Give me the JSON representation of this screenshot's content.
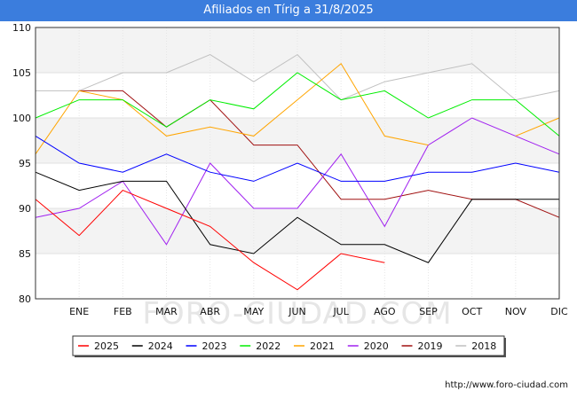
{
  "chart_data": {
    "type": "line",
    "title": "Afiliados en Tírig a 31/8/2025",
    "categories": [
      "",
      "ENE",
      "FEB",
      "MAR",
      "ABR",
      "MAY",
      "JUN",
      "JUL",
      "AGO",
      "SEP",
      "OCT",
      "NOV",
      "DIC"
    ],
    "ylim": [
      80,
      110
    ],
    "yticks": [
      80,
      85,
      90,
      95,
      100,
      105,
      110
    ],
    "xlabel": "",
    "ylabel": "",
    "grid": true,
    "legend_position": "bottom",
    "series": [
      {
        "name": "2025",
        "color": "#ff0000",
        "values": [
          91,
          87,
          92,
          90,
          88,
          84,
          81,
          85,
          84,
          null,
          null,
          null,
          null
        ]
      },
      {
        "name": "2024",
        "color": "#000000",
        "values": [
          94,
          92,
          93,
          93,
          86,
          85,
          89,
          86,
          86,
          84,
          91,
          91,
          91
        ]
      },
      {
        "name": "2023",
        "color": "#0000ff",
        "values": [
          98,
          95,
          94,
          96,
          94,
          93,
          95,
          93,
          93,
          94,
          94,
          95,
          94
        ]
      },
      {
        "name": "2022",
        "color": "#00ee00",
        "values": [
          100,
          102,
          102,
          99,
          102,
          101,
          105,
          102,
          103,
          100,
          102,
          102,
          98
        ]
      },
      {
        "name": "2021",
        "color": "#ffa500",
        "values": [
          96,
          103,
          102,
          98,
          99,
          98,
          102,
          106,
          98,
          97,
          null,
          98,
          100
        ]
      },
      {
        "name": "2020",
        "color": "#a020f0",
        "values": [
          89,
          90,
          93,
          86,
          95,
          90,
          90,
          96,
          88,
          97,
          100,
          98,
          96
        ]
      },
      {
        "name": "2019",
        "color": "#a01010",
        "values": [
          null,
          103,
          103,
          99,
          102,
          97,
          97,
          91,
          91,
          92,
          91,
          91,
          89
        ]
      },
      {
        "name": "2018",
        "color": "#c0c0c0",
        "values": [
          103,
          103,
          105,
          105,
          107,
          104,
          107,
          102,
          104,
          105,
          106,
          102,
          103
        ]
      }
    ]
  },
  "watermark": "FORO-CIUDAD.COM",
  "source_url": "http://www.foro-ciudad.com"
}
